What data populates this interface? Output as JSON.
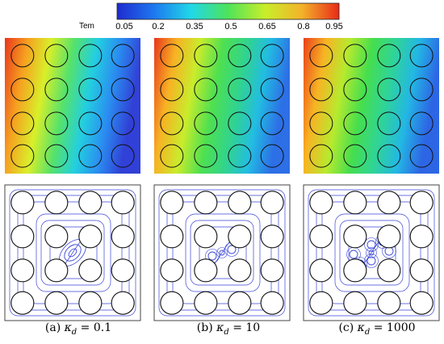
{
  "colorbar": {
    "label": "Tem",
    "ticks": [
      "0.05",
      "0.2",
      "0.35",
      "0.5",
      "0.65",
      "0.8",
      "0.95"
    ],
    "colors": [
      "#1f2bd0",
      "#1e78f0",
      "#20d8e8",
      "#4ee35a",
      "#c8ee2a",
      "#f4b22a",
      "#e82a18"
    ]
  },
  "panels": [
    {
      "caption": "(a) κd = 0.1",
      "caption_prefix": "(a)",
      "caption_math": "κ",
      "caption_sub": "d",
      "caption_value": "= 0.1",
      "gradient": [
        "#e8351c",
        "#f6a020",
        "#d9ef2a",
        "#56e26a",
        "#23cfe0",
        "#2a8df0",
        "#3140d6"
      ],
      "vortex": "single"
    },
    {
      "caption": "(b) κd = 10",
      "caption_prefix": "(b)",
      "caption_math": "κ",
      "caption_sub": "d",
      "caption_value": "= 10",
      "gradient": [
        "#e8351c",
        "#f7b224",
        "#c9ec2c",
        "#4fe050",
        "#32d48c",
        "#22bde2",
        "#2d6fe6"
      ],
      "vortex": "triple"
    },
    {
      "caption": "(c) κd = 1000",
      "caption_prefix": "(c)",
      "caption_math": "κ",
      "caption_sub": "d",
      "caption_value": "= 1000",
      "gradient": [
        "#ea3e1c",
        "#f7b424",
        "#b7ea2e",
        "#46de4e",
        "#2fd498",
        "#23b7e4",
        "#2d66e4"
      ],
      "vortex": "cluster"
    }
  ],
  "colors": {
    "circle_edge": "#111111",
    "streamline": "#3b46d8",
    "frame": "#444444"
  }
}
